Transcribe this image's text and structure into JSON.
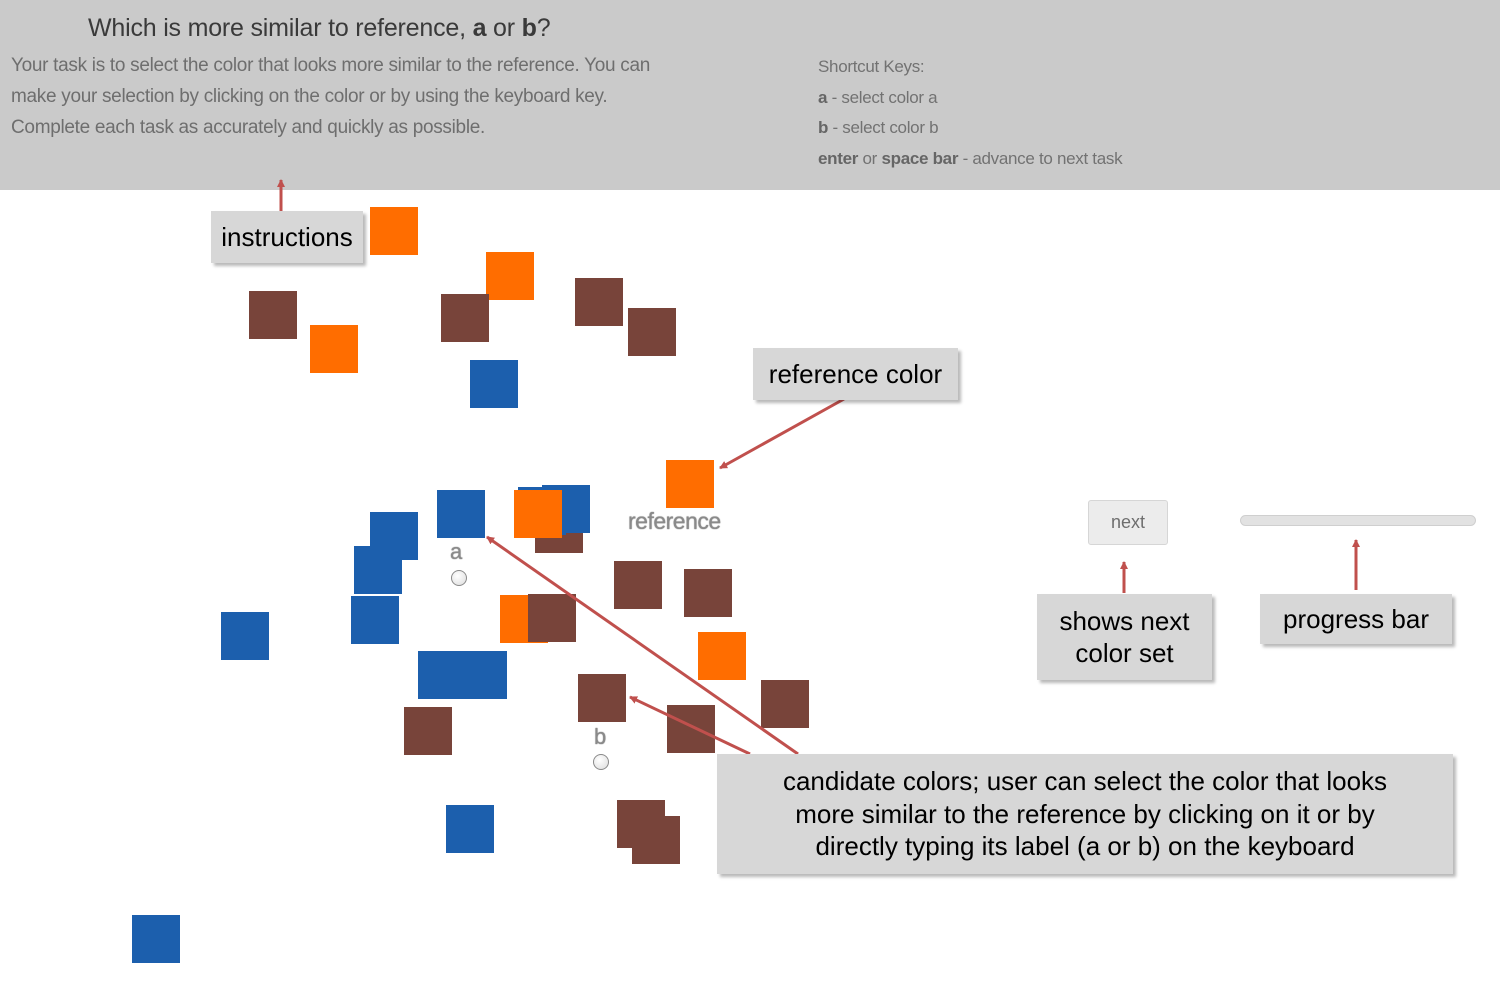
{
  "header": {
    "question_pre": "Which is more similar to reference, ",
    "question_a": "a",
    "question_mid": " or ",
    "question_b": "b",
    "question_post": "?",
    "instructions": [
      "Your task is to select the color that looks more similar to the reference. You can",
      "make your selection by clicking on the color or by using the keyboard key.",
      "Complete each task as accurately and quickly as possible."
    ],
    "shortcuts": {
      "title": "Shortcut Keys:",
      "a_key": "a",
      "a_desc": " - select color a",
      "b_key": "b",
      "b_desc": " - select color b",
      "enter_key": "enter",
      "or_text": " or ",
      "space_key": "space bar",
      "enter_desc": " - advance to next task"
    }
  },
  "colors": {
    "orange": "#ff6d00",
    "brown": "#78443a",
    "blue": "#1c5fad",
    "header_bg": "#cacaca",
    "callout_bg": "#d7d7d7",
    "arrow": "#c0504d"
  },
  "choices": {
    "a_label": "a",
    "b_label": "b",
    "reference_label": "reference"
  },
  "controls": {
    "next_label": "next",
    "progress": 0
  },
  "callouts": {
    "instructions": "instructions",
    "reference_color": "reference color",
    "shows_next_1": "shows next",
    "shows_next_2": "color set",
    "progress_bar": "progress bar",
    "candidate_1": "candidate colors;  user can select the color that looks",
    "candidate_2": "more similar to the reference by clicking on it or by",
    "candidate_3": "directly typing its label (a or b) on the keyboard"
  }
}
